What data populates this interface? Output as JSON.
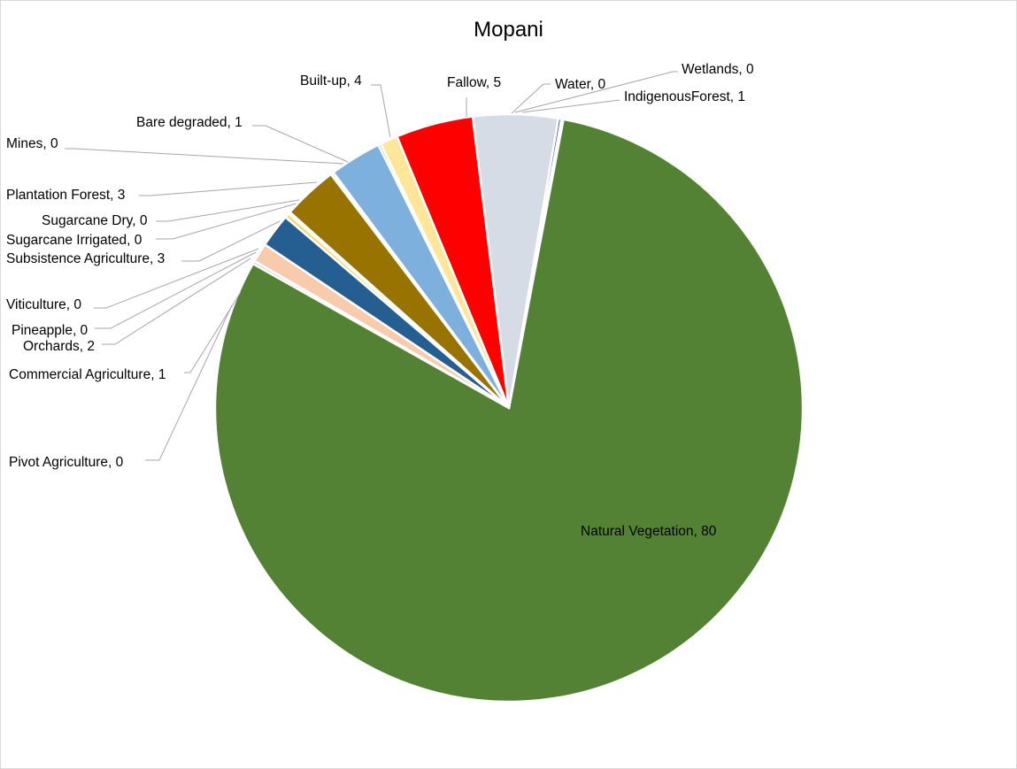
{
  "chart_data": {
    "type": "pie",
    "title": "Mopani",
    "slices": [
      {
        "name": "IndigenousForest",
        "value": 1,
        "label": "IndigenousForest, 1",
        "color": "#375623"
      },
      {
        "name": "Natural Vegetation",
        "value": 80,
        "label": "Natural Vegetation, 80",
        "color": "#548235"
      },
      {
        "name": "Pivot  Agriculture",
        "value": 0,
        "label": "Pivot  Agriculture, 0",
        "color": "#c9c9c9"
      },
      {
        "name": "Commercial Agriculture",
        "value": 1,
        "label": "Commercial Agriculture, 1",
        "color": "#f8cbad"
      },
      {
        "name": "Orchards",
        "value": 2,
        "label": "Orchards, 2",
        "color": "#255e91"
      },
      {
        "name": "Pineapple",
        "value": 0,
        "label": "Pineapple, 0",
        "color": "#ffd966"
      },
      {
        "name": "Viticulture",
        "value": 0,
        "label": "Viticulture, 0",
        "color": "#7030a0"
      },
      {
        "name": "Subsistence Agriculture",
        "value": 3,
        "label": "Subsistence Agriculture, 3",
        "color": "#997300"
      },
      {
        "name": "Sugarcane Irrigated",
        "value": 0,
        "label": "Sugarcane Irrigated, 0",
        "color": "#a9d18e"
      },
      {
        "name": "Sugarcane Dry",
        "value": 0,
        "label": "Sugarcane Dry, 0",
        "color": "#c55a11"
      },
      {
        "name": "Plantation Forest",
        "value": 3,
        "label": "Plantation Forest, 3",
        "color": "#7eb0de"
      },
      {
        "name": "Mines",
        "value": 0,
        "label": "Mines, 0",
        "color": "#7f7f7f"
      },
      {
        "name": "Bare degraded",
        "value": 1,
        "label": "Bare degraded, 1",
        "color": "#ffe699"
      },
      {
        "name": "Built-up",
        "value": 4,
        "label": "Built-up, 4",
        "color": "#ff0000"
      },
      {
        "name": "Fallow",
        "value": 5,
        "label": "Fallow, 5",
        "color": "#d6dce5"
      },
      {
        "name": "Water",
        "value": 0,
        "label": "Water, 0",
        "color": "#1f4e79"
      },
      {
        "name": "Wetlands",
        "value": 0,
        "label": "Wetlands, 0",
        "color": "#8497b0"
      }
    ]
  }
}
